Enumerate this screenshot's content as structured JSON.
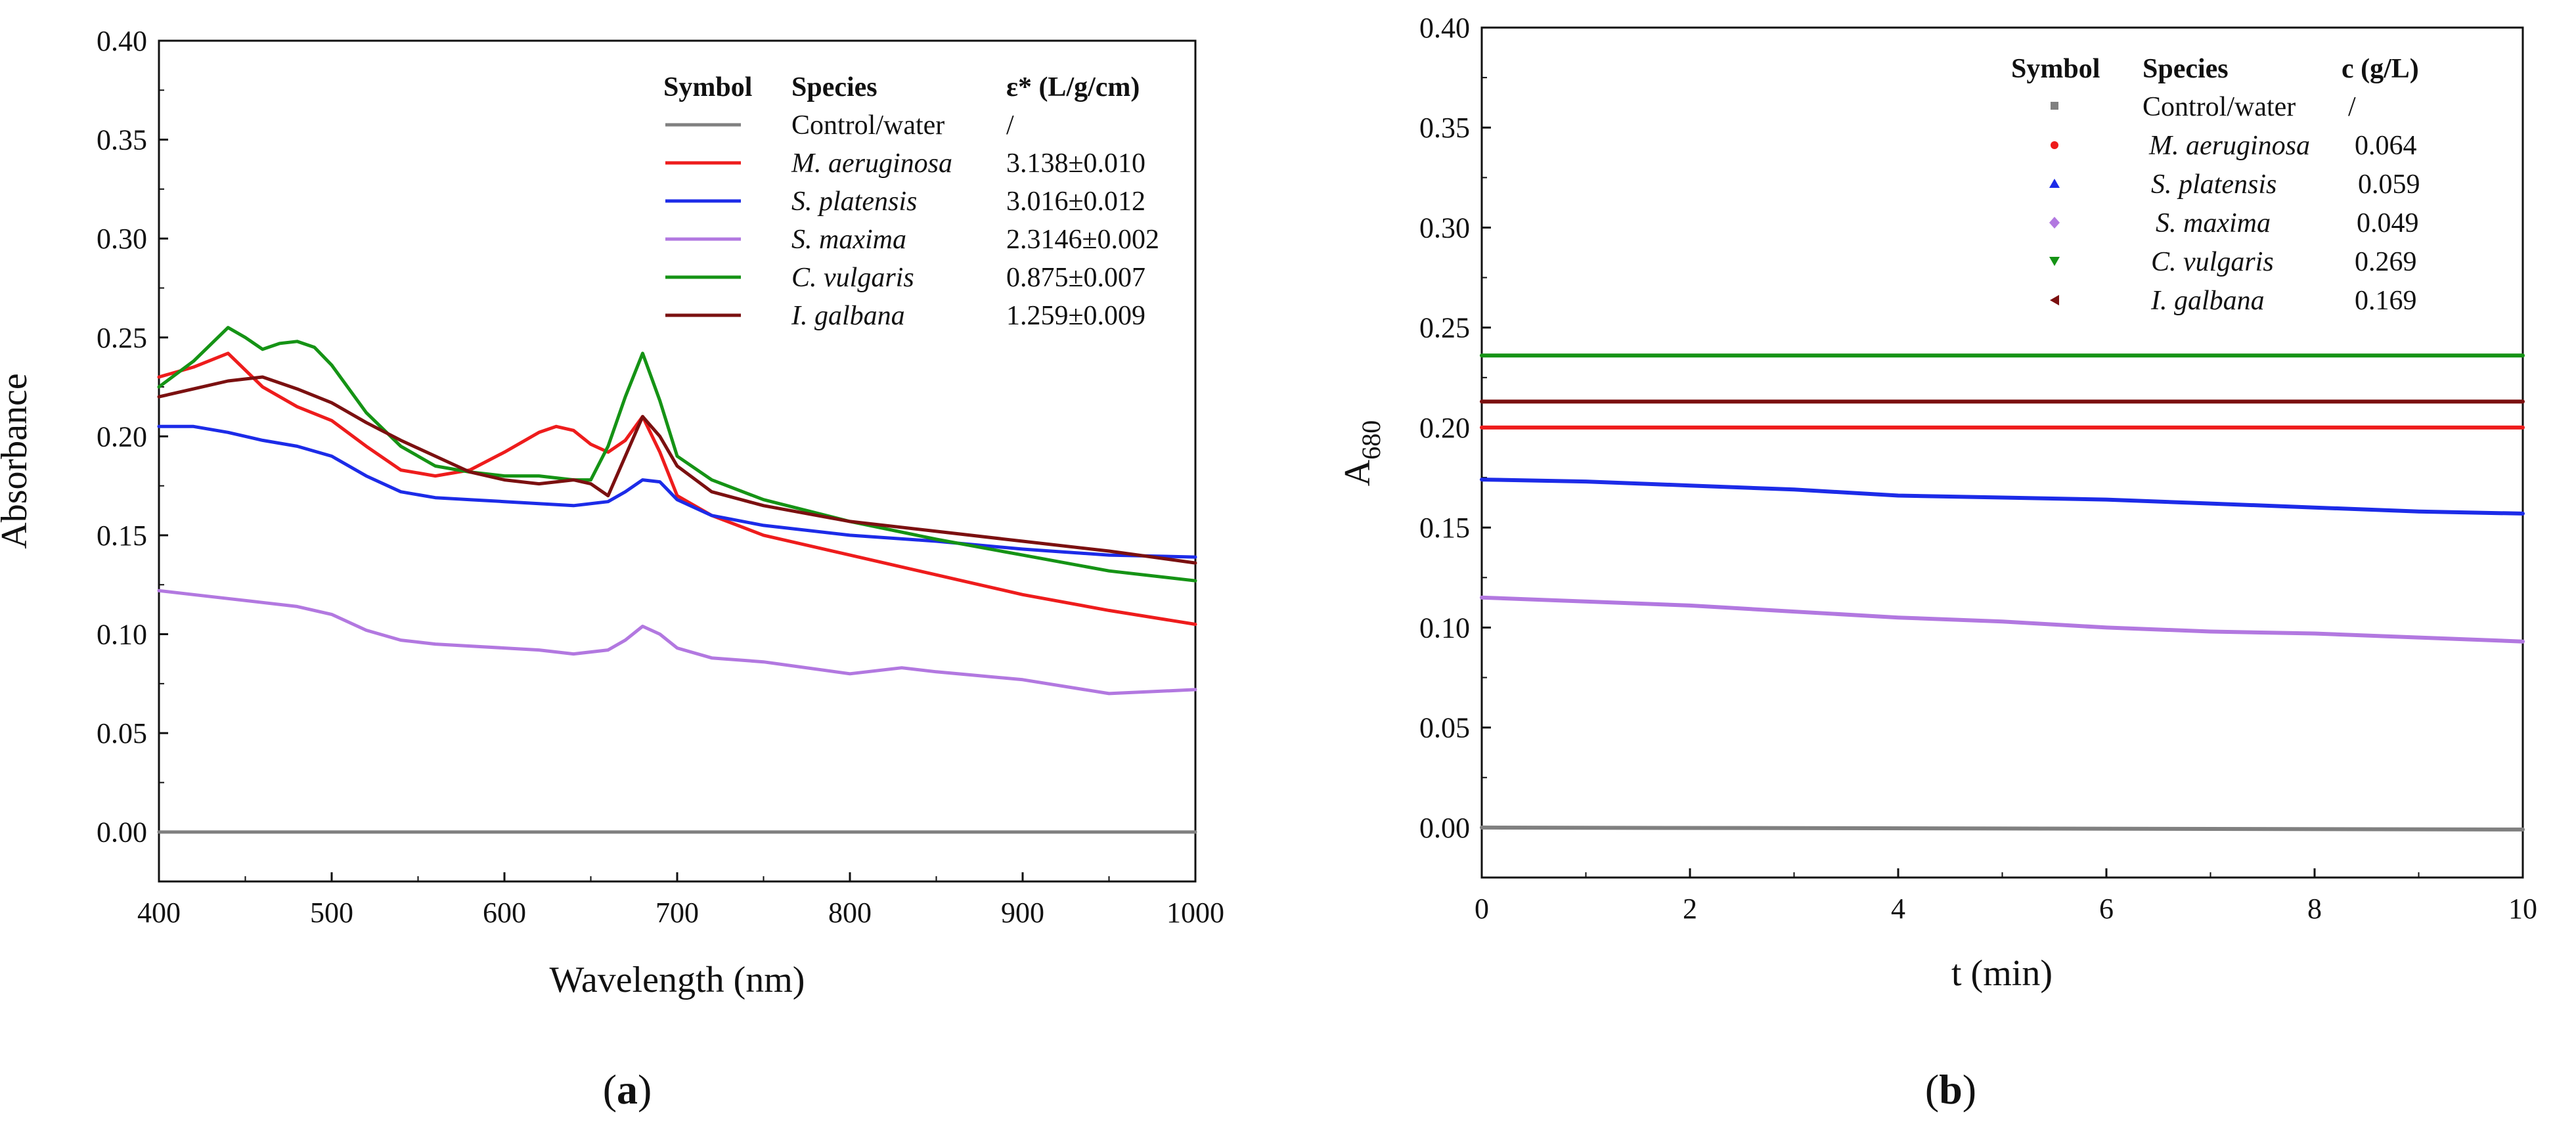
{
  "chart_data": [
    {
      "type": "line",
      "panel_label": "(a)",
      "panel_letter": "a",
      "xlabel": "Wavelength (nm)",
      "ylabel": "Absorbance",
      "xlim": [
        400,
        1000
      ],
      "ylim": [
        -0.025,
        0.4
      ],
      "x_ticks": [
        400,
        500,
        600,
        700,
        800,
        900,
        1000
      ],
      "y_ticks": [
        "0.00",
        "0.05",
        "0.10",
        "0.15",
        "0.20",
        "0.25",
        "0.30",
        "0.35",
        "0.40"
      ],
      "legend": {
        "headers": [
          "Symbol",
          "Species",
          "ε* (L/g/cm)"
        ],
        "rows": [
          {
            "species": "Control/water",
            "value": "/",
            "italic": false,
            "color": "#808080"
          },
          {
            "species": "M. aeruginosa",
            "value": "3.138±0.010",
            "italic": true,
            "color": "#ee1c1c"
          },
          {
            "species": "S. platensis",
            "value": "3.016±0.012",
            "italic": true,
            "color": "#1c2be8"
          },
          {
            "species": "S. maxima",
            "value": "2.3146±0.002",
            "italic": true,
            "color": "#b278e0"
          },
          {
            "species": "C. vulgaris",
            "value": "0.875±0.007",
            "italic": true,
            "color": "#159315"
          },
          {
            "species": "I. galbana",
            "value": "1.259±0.009",
            "italic": true,
            "color": "#7b1010"
          }
        ]
      },
      "series": [
        {
          "name": "Control/water",
          "color": "#808080",
          "x": [
            400,
            1000
          ],
          "y": [
            0.0,
            0.0
          ]
        },
        {
          "name": "M. aeruginosa",
          "color": "#ee1c1c",
          "x": [
            400,
            420,
            440,
            460,
            480,
            500,
            520,
            540,
            560,
            580,
            600,
            620,
            630,
            640,
            650,
            660,
            670,
            680,
            690,
            700,
            720,
            750,
            800,
            850,
            900,
            950,
            1000
          ],
          "y": [
            0.23,
            0.235,
            0.242,
            0.225,
            0.215,
            0.208,
            0.195,
            0.183,
            0.18,
            0.183,
            0.192,
            0.202,
            0.205,
            0.203,
            0.196,
            0.192,
            0.198,
            0.21,
            0.192,
            0.17,
            0.16,
            0.15,
            0.14,
            0.13,
            0.12,
            0.112,
            0.105
          ]
        },
        {
          "name": "S. platensis",
          "color": "#1c2be8",
          "x": [
            400,
            420,
            440,
            460,
            480,
            500,
            520,
            540,
            560,
            580,
            600,
            620,
            640,
            660,
            670,
            680,
            690,
            700,
            720,
            750,
            800,
            850,
            900,
            950,
            1000
          ],
          "y": [
            0.205,
            0.205,
            0.202,
            0.198,
            0.195,
            0.19,
            0.18,
            0.172,
            0.169,
            0.168,
            0.167,
            0.166,
            0.165,
            0.167,
            0.172,
            0.178,
            0.177,
            0.168,
            0.16,
            0.155,
            0.15,
            0.147,
            0.143,
            0.14,
            0.139
          ]
        },
        {
          "name": "S. maxima",
          "color": "#b278e0",
          "x": [
            400,
            420,
            440,
            460,
            480,
            500,
            520,
            540,
            560,
            580,
            600,
            620,
            640,
            660,
            670,
            680,
            690,
            700,
            720,
            750,
            800,
            830,
            850,
            900,
            950,
            1000
          ],
          "y": [
            0.122,
            0.12,
            0.118,
            0.116,
            0.114,
            0.11,
            0.102,
            0.097,
            0.095,
            0.094,
            0.093,
            0.092,
            0.09,
            0.092,
            0.097,
            0.104,
            0.1,
            0.093,
            0.088,
            0.086,
            0.08,
            0.083,
            0.081,
            0.077,
            0.07,
            0.072
          ]
        },
        {
          "name": "C. vulgaris",
          "color": "#159315",
          "x": [
            400,
            420,
            440,
            450,
            460,
            470,
            480,
            490,
            500,
            520,
            540,
            560,
            580,
            600,
            620,
            640,
            650,
            660,
            670,
            680,
            690,
            700,
            720,
            750,
            800,
            850,
            900,
            950,
            1000
          ],
          "y": [
            0.225,
            0.238,
            0.255,
            0.25,
            0.244,
            0.247,
            0.248,
            0.245,
            0.236,
            0.212,
            0.195,
            0.185,
            0.182,
            0.18,
            0.18,
            0.178,
            0.178,
            0.195,
            0.22,
            0.242,
            0.218,
            0.19,
            0.178,
            0.168,
            0.157,
            0.148,
            0.14,
            0.132,
            0.127
          ]
        },
        {
          "name": "I. galbana",
          "color": "#7b1010",
          "x": [
            400,
            420,
            440,
            460,
            480,
            500,
            520,
            540,
            560,
            580,
            600,
            620,
            640,
            650,
            660,
            670,
            680,
            690,
            700,
            720,
            750,
            800,
            850,
            900,
            950,
            1000
          ],
          "y": [
            0.22,
            0.224,
            0.228,
            0.23,
            0.224,
            0.217,
            0.207,
            0.198,
            0.19,
            0.182,
            0.178,
            0.176,
            0.178,
            0.176,
            0.17,
            0.19,
            0.21,
            0.2,
            0.185,
            0.172,
            0.165,
            0.157,
            0.152,
            0.147,
            0.142,
            0.136
          ]
        }
      ]
    },
    {
      "type": "scatter",
      "panel_label": "(b)",
      "panel_letter": "b",
      "xlabel": "t (min)",
      "ylabel": "A",
      "ylabel_sub": "680",
      "xlim": [
        0,
        10
      ],
      "ylim": [
        -0.025,
        0.4
      ],
      "x_ticks": [
        0,
        2,
        4,
        6,
        8,
        10
      ],
      "y_ticks": [
        "0.00",
        "0.05",
        "0.10",
        "0.15",
        "0.20",
        "0.25",
        "0.30",
        "0.35",
        "0.40"
      ],
      "legend": {
        "headers": [
          "Symbol",
          "Species",
          "c (g/L)"
        ],
        "rows": [
          {
            "species": "Control/water",
            "value": "/",
            "italic": false,
            "color": "#808080",
            "marker": "square"
          },
          {
            "species": "M. aeruginosa",
            "value": "0.064",
            "italic": true,
            "color": "#ee1c1c",
            "marker": "circle"
          },
          {
            "species": "S. platensis",
            "value": "0.059",
            "italic": true,
            "color": "#1c2be8",
            "marker": "triangle-up"
          },
          {
            "species": "S. maxima",
            "value": "0.049",
            "italic": true,
            "color": "#b278e0",
            "marker": "diamond"
          },
          {
            "species": "C. vulgaris",
            "value": "0.269",
            "italic": true,
            "color": "#159315",
            "marker": "triangle-down"
          },
          {
            "species": "I. galbana",
            "value": "0.169",
            "italic": true,
            "color": "#7b1010",
            "marker": "triangle-left"
          }
        ]
      },
      "series": [
        {
          "name": "Control/water",
          "color": "#808080",
          "x": [
            0,
            10
          ],
          "y": [
            0.0,
            -0.001
          ]
        },
        {
          "name": "M. aeruginosa",
          "color": "#ee1c1c",
          "x": [
            0,
            10
          ],
          "y": [
            0.2,
            0.2
          ]
        },
        {
          "name": "S. platensis",
          "color": "#1c2be8",
          "x": [
            0,
            1,
            2,
            3,
            4,
            5,
            6,
            7,
            8,
            9,
            10
          ],
          "y": [
            0.174,
            0.173,
            0.171,
            0.169,
            0.166,
            0.165,
            0.164,
            0.162,
            0.16,
            0.158,
            0.157
          ]
        },
        {
          "name": "S. maxima",
          "color": "#b278e0",
          "x": [
            0,
            1,
            2,
            3,
            4,
            5,
            6,
            7,
            8,
            9,
            10
          ],
          "y": [
            0.115,
            0.113,
            0.111,
            0.108,
            0.105,
            0.103,
            0.1,
            0.098,
            0.097,
            0.095,
            0.093
          ]
        },
        {
          "name": "C. vulgaris",
          "color": "#159315",
          "x": [
            0,
            10
          ],
          "y": [
            0.236,
            0.236
          ]
        },
        {
          "name": "I. galbana",
          "color": "#7b1010",
          "x": [
            0,
            10
          ],
          "y": [
            0.213,
            0.213
          ]
        }
      ]
    }
  ]
}
